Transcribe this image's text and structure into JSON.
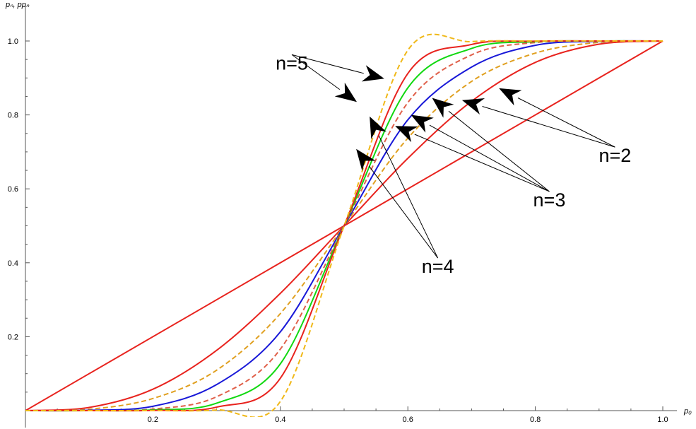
{
  "chart_data": {
    "type": "line",
    "xlabel": "p₀",
    "ylabel": "pₙ, ppₙ",
    "xlim": [
      0,
      1
    ],
    "ylim": [
      0,
      1
    ],
    "x_ticks": [
      "0.2",
      "0.4",
      "0.6",
      "0.8",
      "1.0"
    ],
    "y_ticks": [
      "0.2",
      "0.4",
      "0.6",
      "0.8",
      "1.0"
    ],
    "grid": false,
    "legend": "none",
    "series": [
      {
        "x": [
          0,
          1
        ],
        "y": [
          0,
          1
        ],
        "color": "#e8231e",
        "dashed": false
      },
      {
        "x": [
          0,
          0.1,
          0.2,
          0.3,
          0.4,
          0.5,
          0.6,
          0.7,
          0.8,
          0.9,
          1
        ],
        "y": [
          0,
          0.0086,
          0.0579,
          0.1631,
          0.3174,
          0.5,
          0.6826,
          0.8369,
          0.9421,
          0.9914,
          1
        ],
        "color": "#e8231e",
        "dashed": false
      },
      {
        "x": [
          0,
          0.1,
          0.2,
          0.3,
          0.4,
          0.5,
          0.6,
          0.7,
          0.8,
          0.9,
          1
        ],
        "y": [
          0,
          0.0037,
          0.0328,
          0.1094,
          0.2627,
          0.5,
          0.7373,
          0.8906,
          0.9672,
          0.9963,
          1
        ],
        "color": "#e0a020",
        "dashed": true
      },
      {
        "x": [
          0,
          0.1,
          0.2,
          0.3,
          0.4,
          0.5,
          0.6,
          0.7,
          0.8,
          0.9,
          1
        ],
        "y": [
          0,
          0.0009,
          0.0117,
          0.0705,
          0.2133,
          0.5,
          0.7867,
          0.9295,
          0.9883,
          0.9991,
          1
        ],
        "color": "#1818d8",
        "dashed": false
      },
      {
        "x": [
          0,
          0.1,
          0.2,
          0.3,
          0.4,
          0.5,
          0.6,
          0.7,
          0.8,
          0.9,
          1
        ],
        "y": [
          0,
          0.0001,
          0.0041,
          0.0376,
          0.1665,
          0.5,
          0.8335,
          0.9624,
          0.9959,
          0.9999,
          1
        ],
        "color": "#e0604a",
        "dashed": true
      },
      {
        "x": [
          0,
          0.1,
          0.2,
          0.3,
          0.4,
          0.5,
          0.6,
          0.7,
          0.8,
          0.9,
          1
        ],
        "y": [
          0,
          0,
          0.0018,
          0.0201,
          0.1267,
          0.5,
          0.8733,
          0.9799,
          0.9982,
          1,
          1
        ],
        "color": "#10d810",
        "dashed": false
      },
      {
        "x": [
          0,
          0.1,
          0.2,
          0.3,
          0.4,
          0.5,
          0.6,
          0.7,
          0.8,
          0.9,
          1
        ],
        "y": [
          0,
          0,
          0.0006,
          0.0094,
          0.0878,
          0.5,
          0.9122,
          0.9906,
          0.9994,
          1,
          1
        ],
        "color": "#e8231e",
        "dashed": false
      },
      {
        "x": [
          0,
          0.1,
          0.2,
          0.3,
          0.4,
          0.5,
          0.6,
          0.7,
          0.8,
          0.9,
          1
        ],
        "y": [
          0,
          0,
          0,
          0.0017,
          0.0249,
          0.5,
          0.9751,
          0.9983,
          1,
          1,
          1
        ],
        "color": "#f0b818",
        "dashed": true
      }
    ],
    "annotations": [
      {
        "text": "n=5",
        "label_x": 0.418,
        "label_y": 0.94,
        "targets": [
          [
            0.563,
            0.898
          ],
          [
            0.52,
            0.835
          ]
        ]
      },
      {
        "text": "n=2",
        "label_x": 0.925,
        "label_y": 0.69,
        "targets": [
          [
            0.743,
            0.872
          ],
          [
            0.685,
            0.84
          ]
        ]
      },
      {
        "text": "n=3",
        "label_x": 0.822,
        "label_y": 0.57,
        "targets": [
          [
            0.638,
            0.846
          ],
          [
            0.605,
            0.8
          ],
          [
            0.58,
            0.77
          ]
        ]
      },
      {
        "text": "n=4",
        "label_x": 0.647,
        "label_y": 0.39,
        "targets": [
          [
            0.54,
            0.796
          ],
          [
            0.519,
            0.708
          ]
        ]
      }
    ]
  }
}
